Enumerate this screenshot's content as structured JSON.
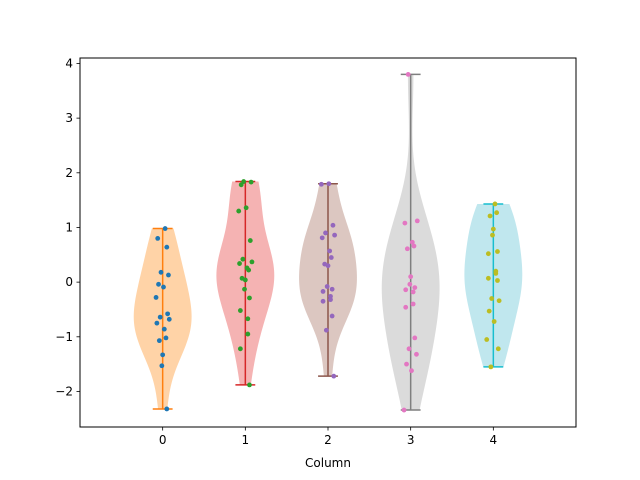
{
  "chart_data": {
    "type": "violin",
    "title": "",
    "xlabel": "Column",
    "ylabel": "",
    "categories": [
      "0",
      "1",
      "2",
      "3",
      "4"
    ],
    "xlim": [
      -1,
      5
    ],
    "ylim": [
      -2.65,
      4.1
    ],
    "yticks": [
      -2,
      -1,
      0,
      1,
      2,
      3,
      4
    ],
    "series": [
      {
        "category": "0",
        "fill": "#ffbb78",
        "line": "#ff7f0e",
        "point": "#1f77b4",
        "min": -2.32,
        "max": 0.98,
        "points": [
          0.98,
          0.8,
          0.64,
          0.18,
          0.13,
          -0.04,
          -0.09,
          -0.28,
          -0.58,
          -0.64,
          -0.68,
          -0.75,
          -0.86,
          -1.02,
          -1.07,
          -1.33,
          -1.53,
          -2.32
        ]
      },
      {
        "category": "1",
        "fill": "#ef8a8b",
        "line": "#d62728",
        "point": "#2ca02c",
        "min": -1.88,
        "max": 1.84,
        "points": [
          1.84,
          1.83,
          1.78,
          1.36,
          1.3,
          0.76,
          0.42,
          0.37,
          0.34,
          0.26,
          0.22,
          0.07,
          0.04,
          -0.13,
          -0.29,
          -0.52,
          -0.67,
          -0.95,
          -1.22,
          -1.88
        ]
      },
      {
        "category": "2",
        "fill": "#c9a9a0",
        "line": "#8c564b",
        "point": "#9467bd",
        "min": -1.72,
        "max": 1.8,
        "points": [
          1.8,
          1.79,
          1.04,
          0.9,
          0.86,
          0.81,
          0.57,
          0.45,
          0.33,
          0.3,
          -0.08,
          -0.13,
          -0.17,
          -0.26,
          -0.32,
          -0.35,
          -0.62,
          -0.88,
          -1.72
        ]
      },
      {
        "category": "3",
        "fill": "#c7c7c7",
        "line": "#7f7f7f",
        "point": "#e377c2",
        "min": -2.34,
        "max": 3.8,
        "points": [
          3.8,
          1.12,
          1.08,
          0.73,
          0.66,
          0.61,
          0.1,
          -0.04,
          -0.1,
          -0.14,
          -0.18,
          -0.4,
          -0.46,
          -1.02,
          -1.22,
          -1.32,
          -1.5,
          -1.62,
          -2.34
        ]
      },
      {
        "category": "4",
        "fill": "#9edae5",
        "line": "#17becf",
        "point": "#bcbd22",
        "min": -1.55,
        "max": 1.43,
        "points": [
          1.43,
          1.27,
          1.21,
          0.97,
          0.86,
          0.56,
          0.52,
          0.2,
          0.16,
          0.07,
          0.03,
          -0.3,
          -0.34,
          -0.53,
          -0.72,
          -1.05,
          -1.22,
          -1.55
        ]
      }
    ]
  }
}
